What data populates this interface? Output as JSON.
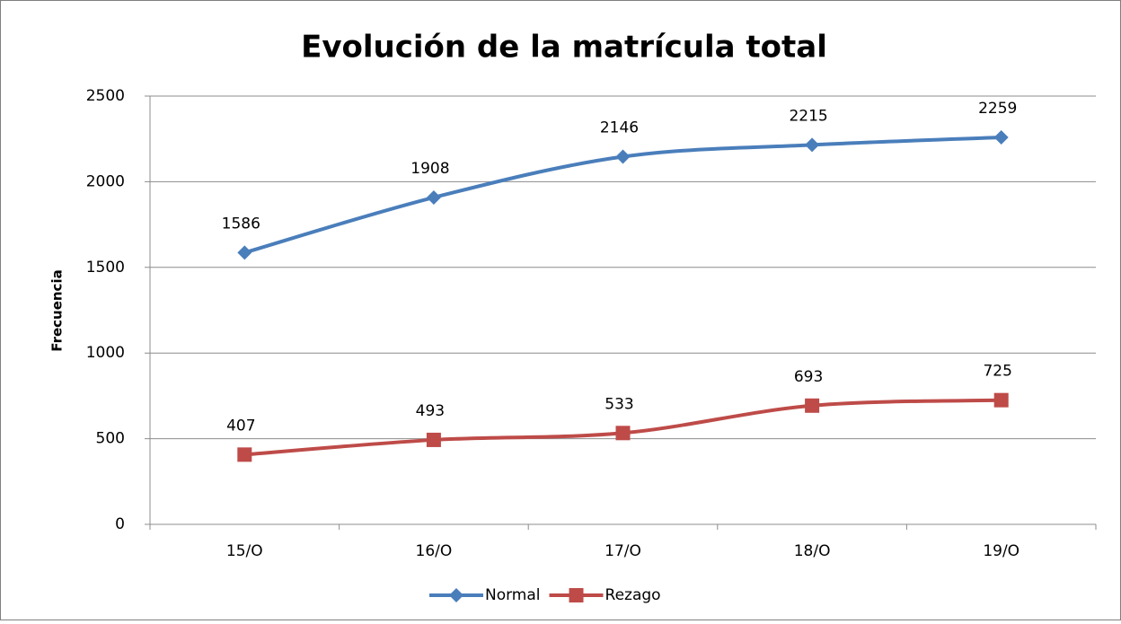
{
  "chart_data": {
    "type": "line",
    "title": "Evolución de la matrícula total",
    "y_label": "Frecuencia",
    "categories": [
      "15/O",
      "16/O",
      "17/O",
      "18/O",
      "19/O"
    ],
    "series": [
      {
        "name": "Normal",
        "color": "#4a7ebb",
        "marker": "diamond",
        "values": [
          1586,
          1908,
          2146,
          2215,
          2259
        ]
      },
      {
        "name": "Rezago",
        "color": "#be4b48",
        "marker": "square",
        "values": [
          407,
          493,
          533,
          693,
          725
        ]
      }
    ],
    "ylim": [
      0,
      2500
    ],
    "yticks": [
      0,
      500,
      1000,
      1500,
      2000,
      2500
    ],
    "grid": true,
    "smooth": true,
    "legend": "bottom"
  }
}
